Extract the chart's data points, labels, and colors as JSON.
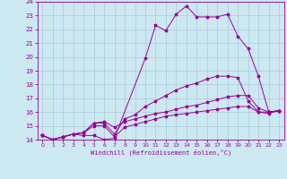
{
  "xlabel": "Windchill (Refroidissement éolien,°C)",
  "bg_color": "#cce8f0",
  "line_color": "#990099",
  "grid_color": "#aac8d8",
  "xlim": [
    -0.5,
    23.5
  ],
  "ylim": [
    14,
    24
  ],
  "xticks": [
    0,
    1,
    2,
    3,
    4,
    5,
    6,
    7,
    8,
    9,
    10,
    11,
    12,
    13,
    14,
    15,
    16,
    17,
    18,
    19,
    20,
    21,
    22,
    23
  ],
  "yticks": [
    14,
    15,
    16,
    17,
    18,
    19,
    20,
    21,
    22,
    23,
    24
  ],
  "lines": [
    {
      "x": [
        0,
        1,
        2,
        3,
        4,
        5,
        6,
        7,
        10,
        11,
        12,
        13,
        14,
        15,
        16,
        17,
        18,
        19,
        20,
        21,
        22,
        23
      ],
      "y": [
        14.3,
        14.0,
        14.2,
        14.4,
        14.3,
        14.3,
        14.0,
        14.1,
        19.9,
        22.3,
        21.9,
        23.1,
        23.7,
        22.9,
        22.9,
        22.9,
        23.1,
        21.5,
        20.6,
        18.6,
        16.0,
        16.1
      ]
    },
    {
      "x": [
        0,
        1,
        2,
        3,
        4,
        5,
        6,
        7,
        8,
        9,
        10,
        11,
        12,
        13,
        14,
        15,
        16,
        17,
        18,
        19,
        20,
        21,
        22,
        23
      ],
      "y": [
        14.3,
        14.0,
        14.2,
        14.4,
        14.5,
        15.2,
        15.2,
        14.4,
        15.5,
        15.8,
        16.4,
        16.8,
        17.2,
        17.6,
        17.9,
        18.1,
        18.4,
        18.6,
        18.6,
        18.5,
        16.8,
        16.0,
        16.0,
        16.1
      ]
    },
    {
      "x": [
        0,
        1,
        2,
        3,
        4,
        5,
        6,
        7,
        8,
        9,
        10,
        11,
        12,
        13,
        14,
        15,
        16,
        17,
        18,
        19,
        20,
        21,
        22,
        23
      ],
      "y": [
        14.3,
        14.0,
        14.2,
        14.4,
        14.5,
        15.2,
        15.3,
        14.9,
        15.3,
        15.5,
        15.7,
        15.9,
        16.0,
        16.2,
        16.4,
        16.5,
        16.7,
        16.9,
        17.1,
        17.2,
        17.2,
        16.3,
        16.0,
        16.1
      ]
    },
    {
      "x": [
        0,
        1,
        2,
        3,
        4,
        5,
        6,
        7,
        8,
        9,
        10,
        11,
        12,
        13,
        14,
        15,
        16,
        17,
        18,
        19,
        20,
        21,
        22,
        23
      ],
      "y": [
        14.3,
        14.0,
        14.2,
        14.4,
        14.5,
        15.0,
        15.0,
        14.2,
        14.9,
        15.1,
        15.3,
        15.5,
        15.7,
        15.8,
        15.9,
        16.0,
        16.1,
        16.2,
        16.3,
        16.4,
        16.4,
        16.0,
        15.9,
        16.1
      ]
    }
  ]
}
